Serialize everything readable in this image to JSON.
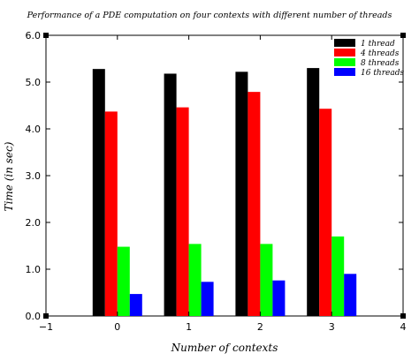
{
  "chart_data": {
    "type": "bar",
    "title": "Performance of a PDE computation on  four contexts with different number of threads",
    "xlabel": "Number of contexts",
    "ylabel": "Time (in sec)",
    "categories": [
      "0",
      "1",
      "2",
      "3"
    ],
    "x": [
      0,
      1,
      2,
      3
    ],
    "xlim": [
      -1,
      4
    ],
    "ylim": [
      0,
      6
    ],
    "xticks": [
      -1,
      0,
      1,
      2,
      3,
      4
    ],
    "yticks": [
      "0.0",
      "1.0",
      "2.0",
      "3.0",
      "4.0",
      "5.0",
      "6.0"
    ],
    "grid": false,
    "legend_position": "top-right",
    "series": [
      {
        "name": "1 thread",
        "color": "#000000",
        "values": [
          5.28,
          5.18,
          5.22,
          5.3
        ]
      },
      {
        "name": "4 threads",
        "color": "#ff0000",
        "values": [
          4.37,
          4.46,
          4.79,
          4.43
        ]
      },
      {
        "name": "8 threads",
        "color": "#00ff00",
        "values": [
          1.48,
          1.54,
          1.54,
          1.7
        ]
      },
      {
        "name": "16 threads",
        "color": "#0000ff",
        "values": [
          0.47,
          0.73,
          0.76,
          0.9
        ]
      }
    ]
  }
}
